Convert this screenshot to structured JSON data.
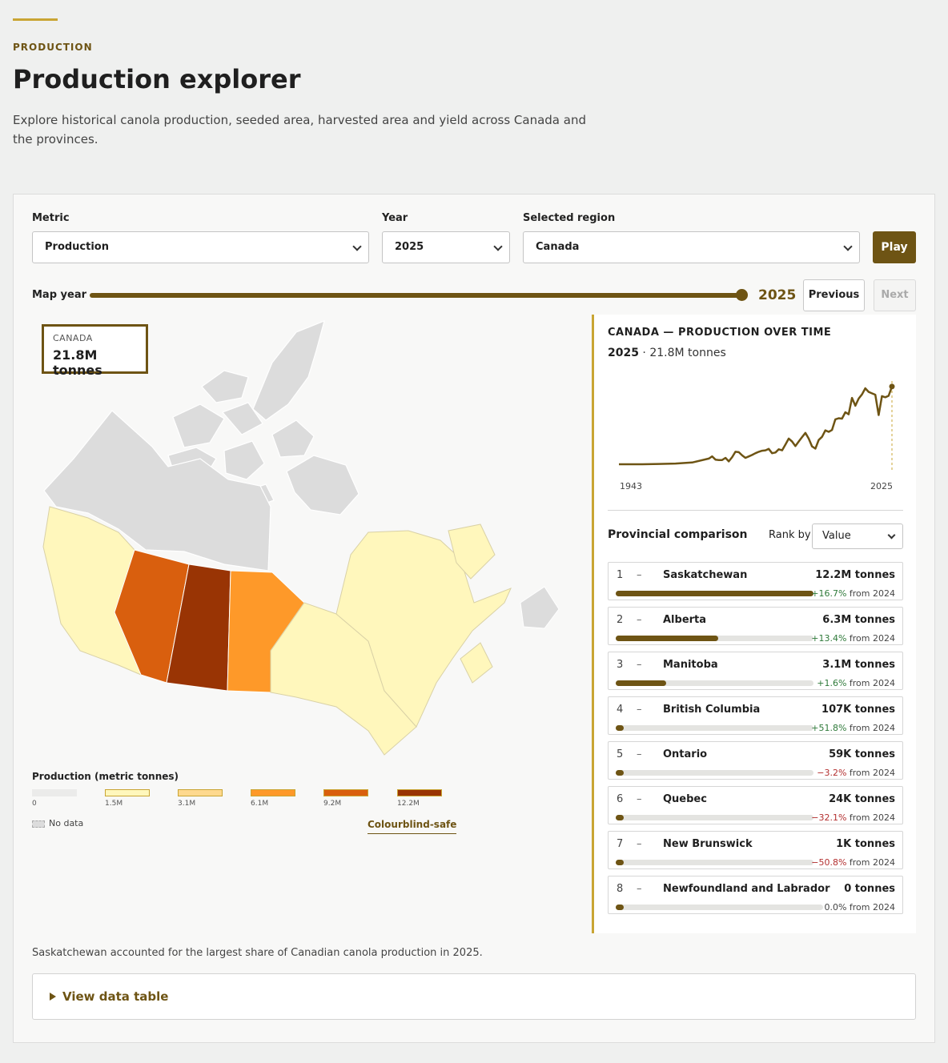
{
  "header": {
    "eyebrow": "PRODUCTION",
    "title": "Production explorer",
    "intro": "Explore historical canola production, seeded area, harvested area and yield across Canada and the provinces."
  },
  "controls": {
    "metric_label": "Metric",
    "metric_value": "Production",
    "year_label": "Year",
    "year_value": "2025",
    "region_label": "Selected region",
    "region_value": "Canada",
    "play_label": "Play",
    "map_year_label": "Map year",
    "map_year_value": "2025",
    "previous_label": "Previous",
    "next_label": "Next"
  },
  "map": {
    "tooltip_region": "CANADA",
    "tooltip_value": "21.8M tonnes",
    "provinces": [
      {
        "name": "Saskatchewan",
        "color": "#993404"
      },
      {
        "name": "Alberta",
        "color": "#d95f0e"
      },
      {
        "name": "Manitoba",
        "color": "#fe9929"
      },
      {
        "name": "British Columbia",
        "color": "#fff7bc"
      },
      {
        "name": "Ontario",
        "color": "#fff7bc"
      },
      {
        "name": "Quebec",
        "color": "#fff7bc"
      },
      {
        "name": "New Brunswick",
        "color": "#fff7bc"
      },
      {
        "name": "Newfoundland and Labrador",
        "color": "#fff7bc"
      },
      {
        "name": "Northern territories",
        "color": "#dcdcdc"
      }
    ]
  },
  "legend": {
    "title": "Production (metric tonnes)",
    "stops": [
      {
        "label": "0",
        "color": "#ebebea"
      },
      {
        "label": "1.5M",
        "color": "#fff7bc"
      },
      {
        "label": "3.1M",
        "color": "#fed98e"
      },
      {
        "label": "6.1M",
        "color": "#fe9929"
      },
      {
        "label": "9.2M",
        "color": "#d95f0e"
      },
      {
        "label": "12.2M",
        "color": "#993404"
      }
    ],
    "no_data_label": "No data",
    "colourblind_label": "Colourblind-safe"
  },
  "trend": {
    "title": "CANADA — PRODUCTION OVER TIME",
    "current_year": "2025",
    "current_value": "· 21.8M tonnes",
    "x_start": "1943",
    "x_end": "2025",
    "chart_data": {
      "type": "line",
      "x": [
        1943,
        1950,
        1955,
        1960,
        1965,
        1970,
        1971,
        1972,
        1973,
        1974,
        1975,
        1976,
        1977,
        1978,
        1979,
        1980,
        1981,
        1982,
        1983,
        1984,
        1985,
        1986,
        1987,
        1988,
        1989,
        1990,
        1991,
        1992,
        1993,
        1994,
        1995,
        1996,
        1997,
        1998,
        1999,
        2000,
        2001,
        2002,
        2003,
        2004,
        2005,
        2006,
        2007,
        2008,
        2009,
        2010,
        2011,
        2012,
        2013,
        2014,
        2015,
        2016,
        2017,
        2018,
        2019,
        2020,
        2021,
        2022,
        2023,
        2024,
        2025
      ],
      "y": [
        0.0,
        0.0,
        0.1,
        0.2,
        0.5,
        1.6,
        2.2,
        1.3,
        1.2,
        1.2,
        1.8,
        0.8,
        2.0,
        3.5,
        3.4,
        2.5,
        1.8,
        2.2,
        2.6,
        3.1,
        3.5,
        3.8,
        3.9,
        4.3,
        3.1,
        3.3,
        4.2,
        3.9,
        5.5,
        7.2,
        6.4,
        5.1,
        6.4,
        7.6,
        8.8,
        7.2,
        5.0,
        4.4,
        6.8,
        7.7,
        9.5,
        9.1,
        9.6,
        12.6,
        12.9,
        12.8,
        14.6,
        14.0,
        18.6,
        16.4,
        18.4,
        19.6,
        21.3,
        20.3,
        19.9,
        19.5,
        13.8,
        19.1,
        18.8,
        19.2,
        21.8
      ],
      "xlabel": "",
      "ylabel": ""
    }
  },
  "comparison": {
    "title": "Provincial comparison",
    "rank_label": "Rank by",
    "rank_value": "Value",
    "max_value": 12.2,
    "rows": [
      {
        "rank": "1",
        "dash": "–",
        "name": "Saskatchewan",
        "value": "12.2M tonnes",
        "amount": 12.2,
        "change": "+16.7%",
        "dir": "pos",
        "from": " from 2024"
      },
      {
        "rank": "2",
        "dash": "–",
        "name": "Alberta",
        "value": "6.3M tonnes",
        "amount": 6.3,
        "change": "+13.4%",
        "dir": "pos",
        "from": " from 2024"
      },
      {
        "rank": "3",
        "dash": "–",
        "name": "Manitoba",
        "value": "3.1M tonnes",
        "amount": 3.1,
        "change": "+1.6%",
        "dir": "pos",
        "from": " from 2024"
      },
      {
        "rank": "4",
        "dash": "–",
        "name": "British Columbia",
        "value": "107K tonnes",
        "amount": 0.107,
        "change": "+51.8%",
        "dir": "pos",
        "from": " from 2024"
      },
      {
        "rank": "5",
        "dash": "–",
        "name": "Ontario",
        "value": "59K tonnes",
        "amount": 0.059,
        "change": "−3.2%",
        "dir": "neg",
        "from": " from 2024"
      },
      {
        "rank": "6",
        "dash": "–",
        "name": "Quebec",
        "value": "24K tonnes",
        "amount": 0.024,
        "change": "−32.1%",
        "dir": "neg",
        "from": " from 2024"
      },
      {
        "rank": "7",
        "dash": "–",
        "name": "New Brunswick",
        "value": "1K tonnes",
        "amount": 0.001,
        "change": "−50.8%",
        "dir": "neg",
        "from": " from 2024"
      },
      {
        "rank": "8",
        "dash": "–",
        "name": "Newfoundland and Labrador",
        "value": "0 tonnes",
        "amount": 0,
        "change": "0.0%",
        "dir": "zero",
        "from": " from 2024"
      }
    ]
  },
  "summary": "Saskatchewan accounted for the largest share of Canadian canola production in 2025.",
  "details_label": "View data table",
  "colors": {
    "accent": "#6e5414",
    "gold": "#c9a534",
    "positive": "#2f7a3a",
    "negative": "#b32f2f"
  }
}
